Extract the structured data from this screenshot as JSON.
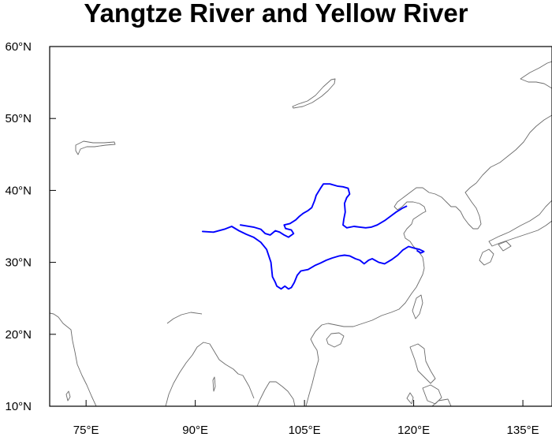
{
  "title": "Yangtze River and Yellow River",
  "map": {
    "projection": "cylindrical-equidistant",
    "lon_range": [
      70,
      139
    ],
    "lat_range": [
      10,
      60
    ],
    "lon_ticks": [
      {
        "value": 75,
        "label": "75°E"
      },
      {
        "value": 90,
        "label": "90°E"
      },
      {
        "value": 105,
        "label": "105°E"
      },
      {
        "value": 120,
        "label": "120°E"
      },
      {
        "value": 135,
        "label": "135°E"
      }
    ],
    "lat_ticks": [
      {
        "value": 10,
        "label": "10°N"
      },
      {
        "value": 20,
        "label": "20°N"
      },
      {
        "value": 30,
        "label": "30°N"
      },
      {
        "value": 40,
        "label": "40°N"
      },
      {
        "value": 50,
        "label": "50°N"
      },
      {
        "value": 60,
        "label": "60°N"
      }
    ],
    "colors": {
      "river": "#0000ff",
      "coastline": "#6b6b6b",
      "frame": "#000000",
      "background": "#ffffff"
    },
    "rivers": [
      {
        "id": "yellow-river",
        "coords": [
          [
            96.2,
            35.2
          ],
          [
            98.0,
            34.9
          ],
          [
            99.0,
            34.6
          ],
          [
            99.6,
            34.0
          ],
          [
            100.3,
            33.8
          ],
          [
            101.0,
            34.4
          ],
          [
            101.6,
            34.2
          ],
          [
            102.2,
            33.8
          ],
          [
            102.8,
            33.5
          ],
          [
            103.5,
            34.0
          ],
          [
            103.2,
            34.5
          ],
          [
            102.4,
            34.7
          ],
          [
            102.2,
            35.2
          ],
          [
            103.0,
            35.4
          ],
          [
            103.8,
            35.9
          ],
          [
            104.3,
            36.4
          ],
          [
            104.8,
            36.8
          ],
          [
            105.5,
            37.2
          ],
          [
            106.0,
            37.6
          ],
          [
            106.4,
            38.6
          ],
          [
            106.6,
            39.3
          ],
          [
            107.2,
            40.3
          ],
          [
            107.6,
            40.9
          ],
          [
            108.5,
            40.9
          ],
          [
            109.5,
            40.6
          ],
          [
            110.3,
            40.5
          ],
          [
            111.0,
            40.3
          ],
          [
            111.2,
            39.5
          ],
          [
            110.8,
            39.0
          ],
          [
            110.5,
            38.2
          ],
          [
            110.6,
            37.0
          ],
          [
            110.4,
            36.0
          ],
          [
            110.3,
            35.2
          ],
          [
            110.8,
            34.8
          ],
          [
            111.8,
            35.0
          ],
          [
            112.6,
            34.9
          ],
          [
            113.4,
            34.8
          ],
          [
            114.2,
            34.9
          ],
          [
            115.0,
            35.2
          ],
          [
            116.0,
            35.8
          ],
          [
            116.8,
            36.4
          ],
          [
            117.6,
            37.0
          ],
          [
            118.4,
            37.5
          ],
          [
            119.0,
            37.8
          ]
        ]
      },
      {
        "id": "yangtze-river",
        "coords": [
          [
            91.0,
            34.3
          ],
          [
            92.5,
            34.2
          ],
          [
            94.0,
            34.6
          ],
          [
            95.0,
            35.0
          ],
          [
            96.0,
            34.4
          ],
          [
            97.0,
            33.9
          ],
          [
            98.0,
            33.5
          ],
          [
            99.0,
            32.8
          ],
          [
            99.8,
            31.8
          ],
          [
            100.4,
            30.0
          ],
          [
            100.6,
            28.0
          ],
          [
            101.0,
            27.2
          ],
          [
            101.2,
            26.7
          ],
          [
            101.8,
            26.3
          ],
          [
            102.3,
            26.7
          ],
          [
            102.8,
            26.3
          ],
          [
            103.2,
            26.5
          ],
          [
            103.6,
            27.2
          ],
          [
            104.0,
            28.2
          ],
          [
            104.5,
            28.8
          ],
          [
            105.5,
            29.0
          ],
          [
            106.5,
            29.6
          ],
          [
            107.2,
            29.9
          ],
          [
            108.0,
            30.3
          ],
          [
            108.8,
            30.6
          ],
          [
            109.8,
            30.9
          ],
          [
            110.5,
            31.0
          ],
          [
            111.2,
            30.9
          ],
          [
            112.0,
            30.5
          ],
          [
            112.6,
            30.3
          ],
          [
            113.2,
            29.8
          ],
          [
            113.8,
            30.3
          ],
          [
            114.3,
            30.5
          ],
          [
            115.2,
            30.0
          ],
          [
            116.0,
            29.8
          ],
          [
            117.0,
            30.4
          ],
          [
            117.8,
            31.0
          ],
          [
            118.5,
            31.7
          ],
          [
            119.3,
            32.2
          ],
          [
            120.0,
            32.0
          ],
          [
            120.8,
            31.8
          ],
          [
            121.4,
            31.5
          ],
          [
            121.0,
            31.3
          ],
          [
            120.5,
            31.6
          ]
        ]
      }
    ]
  }
}
